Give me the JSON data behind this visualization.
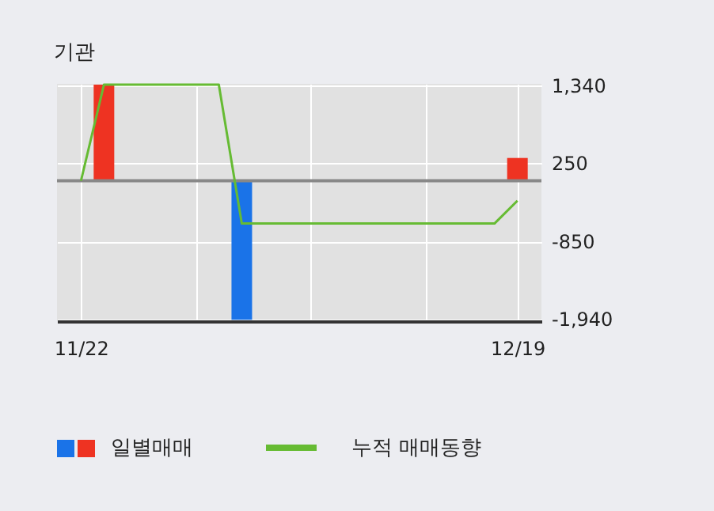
{
  "chart_data": {
    "type": "bar",
    "title": "기관",
    "categories": [
      "11/22",
      null,
      null,
      null,
      null,
      null,
      null,
      null,
      null,
      null,
      null,
      null,
      null,
      null,
      null,
      null,
      null,
      null,
      null,
      "12/19"
    ],
    "series": [
      {
        "name": "일별매매",
        "values": [
          0,
          1350,
          0,
          0,
          0,
          0,
          0,
          -1950,
          0,
          0,
          0,
          0,
          0,
          0,
          0,
          0,
          0,
          0,
          0,
          320
        ],
        "colors": [
          "#ee3322",
          "#ee3322",
          "#ee3322",
          "#ee3322",
          "#ee3322",
          "#ee3322",
          "#ee3322",
          "#1a73e8",
          "#ee3322",
          "#ee3322",
          "#ee3322",
          "#ee3322",
          "#ee3322",
          "#ee3322",
          "#ee3322",
          "#ee3322",
          "#ee3322",
          "#ee3322",
          "#ee3322",
          "#ee3322"
        ]
      },
      {
        "name": "누적 매매동향",
        "type": "line",
        "color": "#66bb33",
        "values": [
          0,
          1350,
          1350,
          1350,
          1350,
          1350,
          1350,
          -600,
          -600,
          -600,
          -600,
          -600,
          -600,
          -600,
          -600,
          -600,
          -600,
          -600,
          -600,
          -280
        ]
      }
    ],
    "ylim": [
      -1970,
      1360
    ],
    "yticks": [
      {
        "value": 1340,
        "label": "1,340"
      },
      {
        "value": 250,
        "label": "250"
      },
      {
        "value": -850,
        "label": "-850"
      },
      {
        "value": -1940,
        "label": "-1,940"
      }
    ],
    "ref_lines": [
      {
        "axis": "y",
        "value": 0,
        "color": "#888888"
      }
    ],
    "grid": true,
    "legend": "bottom left"
  }
}
